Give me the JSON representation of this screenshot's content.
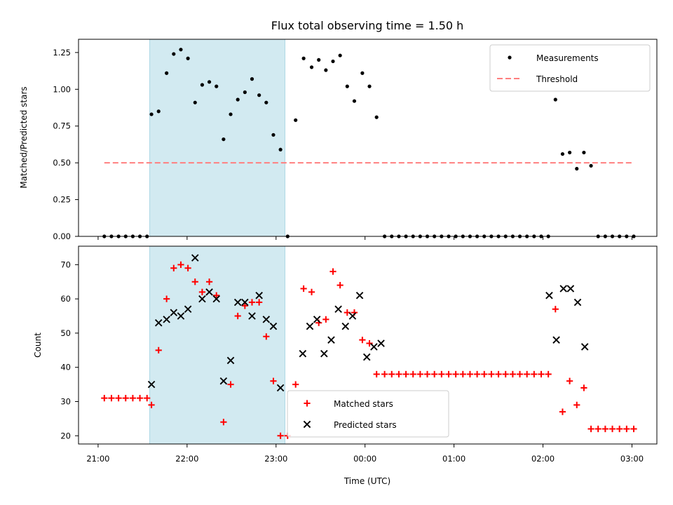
{
  "chart_data": {
    "type": "scatter",
    "title": "Flux total observing time = 1.50 h",
    "xlabel": "Time (UTC)",
    "x_unit": "hours since 21:00 UTC",
    "xlim": [
      -0.22,
      6.28
    ],
    "xticks": [
      0,
      1,
      2,
      3,
      4,
      5,
      6
    ],
    "xtick_labels": [
      "21:00",
      "22:00",
      "23:00",
      "00:00",
      "01:00",
      "02:00",
      "03:00"
    ],
    "shaded_interval": [
      0.58,
      2.1
    ],
    "shaded_color": "#add8e6",
    "panels": [
      {
        "ylabel": "Matched/Predicted stars",
        "ylim": [
          0,
          1.34
        ],
        "yticks": [
          "0.00",
          "0.25",
          "0.50",
          "0.75",
          "1.00",
          "1.25"
        ],
        "legend_position": "upper right",
        "series": [
          {
            "name": "Measurements",
            "marker": "dot",
            "color": "#000000",
            "x": [
              0.07,
              0.15,
              0.23,
              0.31,
              0.39,
              0.47,
              0.55,
              0.6,
              0.68,
              0.77,
              0.85,
              0.93,
              1.01,
              1.09,
              1.17,
              1.25,
              1.33,
              1.41,
              1.49,
              1.57,
              1.65,
              1.73,
              1.81,
              1.89,
              1.97,
              2.05,
              2.13,
              2.22,
              2.31,
              2.4,
              2.48,
              2.56,
              2.64,
              2.72,
              2.8,
              2.88,
              2.97,
              3.05,
              3.13,
              3.22,
              3.3,
              3.38,
              3.46,
              3.54,
              3.62,
              3.7,
              3.78,
              3.86,
              3.94,
              4.02,
              4.1,
              4.18,
              4.26,
              4.34,
              4.42,
              4.5,
              4.58,
              4.66,
              4.74,
              4.82,
              4.9,
              4.98,
              5.06,
              5.14,
              5.22,
              5.3,
              5.38,
              5.46,
              5.54,
              5.62,
              5.7,
              5.78,
              5.86,
              5.94,
              6.02
            ],
            "y": [
              0,
              0,
              0,
              0,
              0,
              0,
              0,
              0.83,
              0.85,
              1.11,
              1.24,
              1.27,
              1.21,
              0.91,
              1.03,
              1.05,
              1.02,
              0.66,
              0.83,
              0.93,
              0.98,
              1.07,
              0.96,
              0.91,
              0.69,
              0.59,
              0,
              0.79,
              1.21,
              1.15,
              1.2,
              1.13,
              1.19,
              1.23,
              1.02,
              0.92,
              1.11,
              1.02,
              0.81,
              0,
              0,
              0,
              0,
              0,
              0,
              0,
              0,
              0,
              0,
              0,
              0,
              0,
              0,
              0,
              0,
              0,
              0,
              0,
              0,
              0,
              0,
              0,
              0,
              0.93,
              0.56,
              0.57,
              0.46,
              0.57,
              0.48,
              0,
              0,
              0,
              0,
              0,
              0
            ]
          },
          {
            "name": "Threshold",
            "line": "dashed",
            "color": "#ff7f7f",
            "x": [
              0.07,
              6.02
            ],
            "y": [
              0.5,
              0.5
            ]
          }
        ]
      },
      {
        "ylabel": "Count",
        "ylim": [
          17.6,
          75.4
        ],
        "yticks": [
          "20",
          "30",
          "40",
          "50",
          "60",
          "70"
        ],
        "legend_position": "lower center",
        "series": [
          {
            "name": "Matched stars",
            "marker": "plus",
            "color": "#ff0000",
            "x": [
              0.07,
              0.15,
              0.23,
              0.31,
              0.39,
              0.47,
              0.55,
              0.6,
              0.68,
              0.77,
              0.85,
              0.93,
              1.01,
              1.09,
              1.17,
              1.25,
              1.33,
              1.41,
              1.49,
              1.57,
              1.65,
              1.73,
              1.81,
              1.89,
              1.97,
              2.05,
              2.13,
              2.22,
              2.31,
              2.4,
              2.48,
              2.56,
              2.64,
              2.72,
              2.8,
              2.88,
              2.97,
              3.05,
              3.13,
              3.22,
              3.3,
              3.38,
              3.46,
              3.54,
              3.62,
              3.7,
              3.78,
              3.86,
              3.94,
              4.02,
              4.1,
              4.18,
              4.26,
              4.34,
              4.42,
              4.5,
              4.58,
              4.66,
              4.74,
              4.82,
              4.9,
              4.98,
              5.06,
              5.14,
              5.22,
              5.3,
              5.38,
              5.46,
              5.54,
              5.62,
              5.7,
              5.78,
              5.86,
              5.94,
              6.02
            ],
            "y": [
              31,
              31,
              31,
              31,
              31,
              31,
              31,
              29,
              45,
              60,
              69,
              70,
              69,
              65,
              62,
              65,
              61,
              24,
              35,
              55,
              58,
              59,
              59,
              49,
              36,
              20,
              20,
              35,
              63,
              62,
              53,
              54,
              68,
              64,
              56,
              56,
              48,
              47,
              38,
              38,
              38,
              38,
              38,
              38,
              38,
              38,
              38,
              38,
              38,
              38,
              38,
              38,
              38,
              38,
              38,
              38,
              38,
              38,
              38,
              38,
              38,
              38,
              38,
              57,
              27,
              36,
              29,
              34,
              22,
              22,
              22,
              22,
              22,
              22,
              22
            ]
          },
          {
            "name": "Predicted stars",
            "marker": "x",
            "color": "#000000",
            "x": [
              0.6,
              0.68,
              0.77,
              0.85,
              0.93,
              1.01,
              1.09,
              1.17,
              1.25,
              1.33,
              1.41,
              1.49,
              1.57,
              1.65,
              1.73,
              1.81,
              1.89,
              1.97,
              2.05,
              2.3,
              2.38,
              2.46,
              2.54,
              2.62,
              2.7,
              2.78,
              2.86,
              2.94,
              3.02,
              3.1,
              3.18,
              5.07,
              5.15,
              5.23,
              5.31,
              5.39,
              5.47
            ],
            "y": [
              35,
              53,
              54,
              56,
              55,
              57,
              72,
              60,
              62,
              60,
              36,
              42,
              59,
              59,
              55,
              61,
              54,
              52,
              34,
              44,
              52,
              54,
              44,
              48,
              57,
              52,
              55,
              61,
              43,
              46,
              47,
              61,
              48,
              63,
              63,
              59,
              46
            ]
          }
        ]
      }
    ]
  }
}
